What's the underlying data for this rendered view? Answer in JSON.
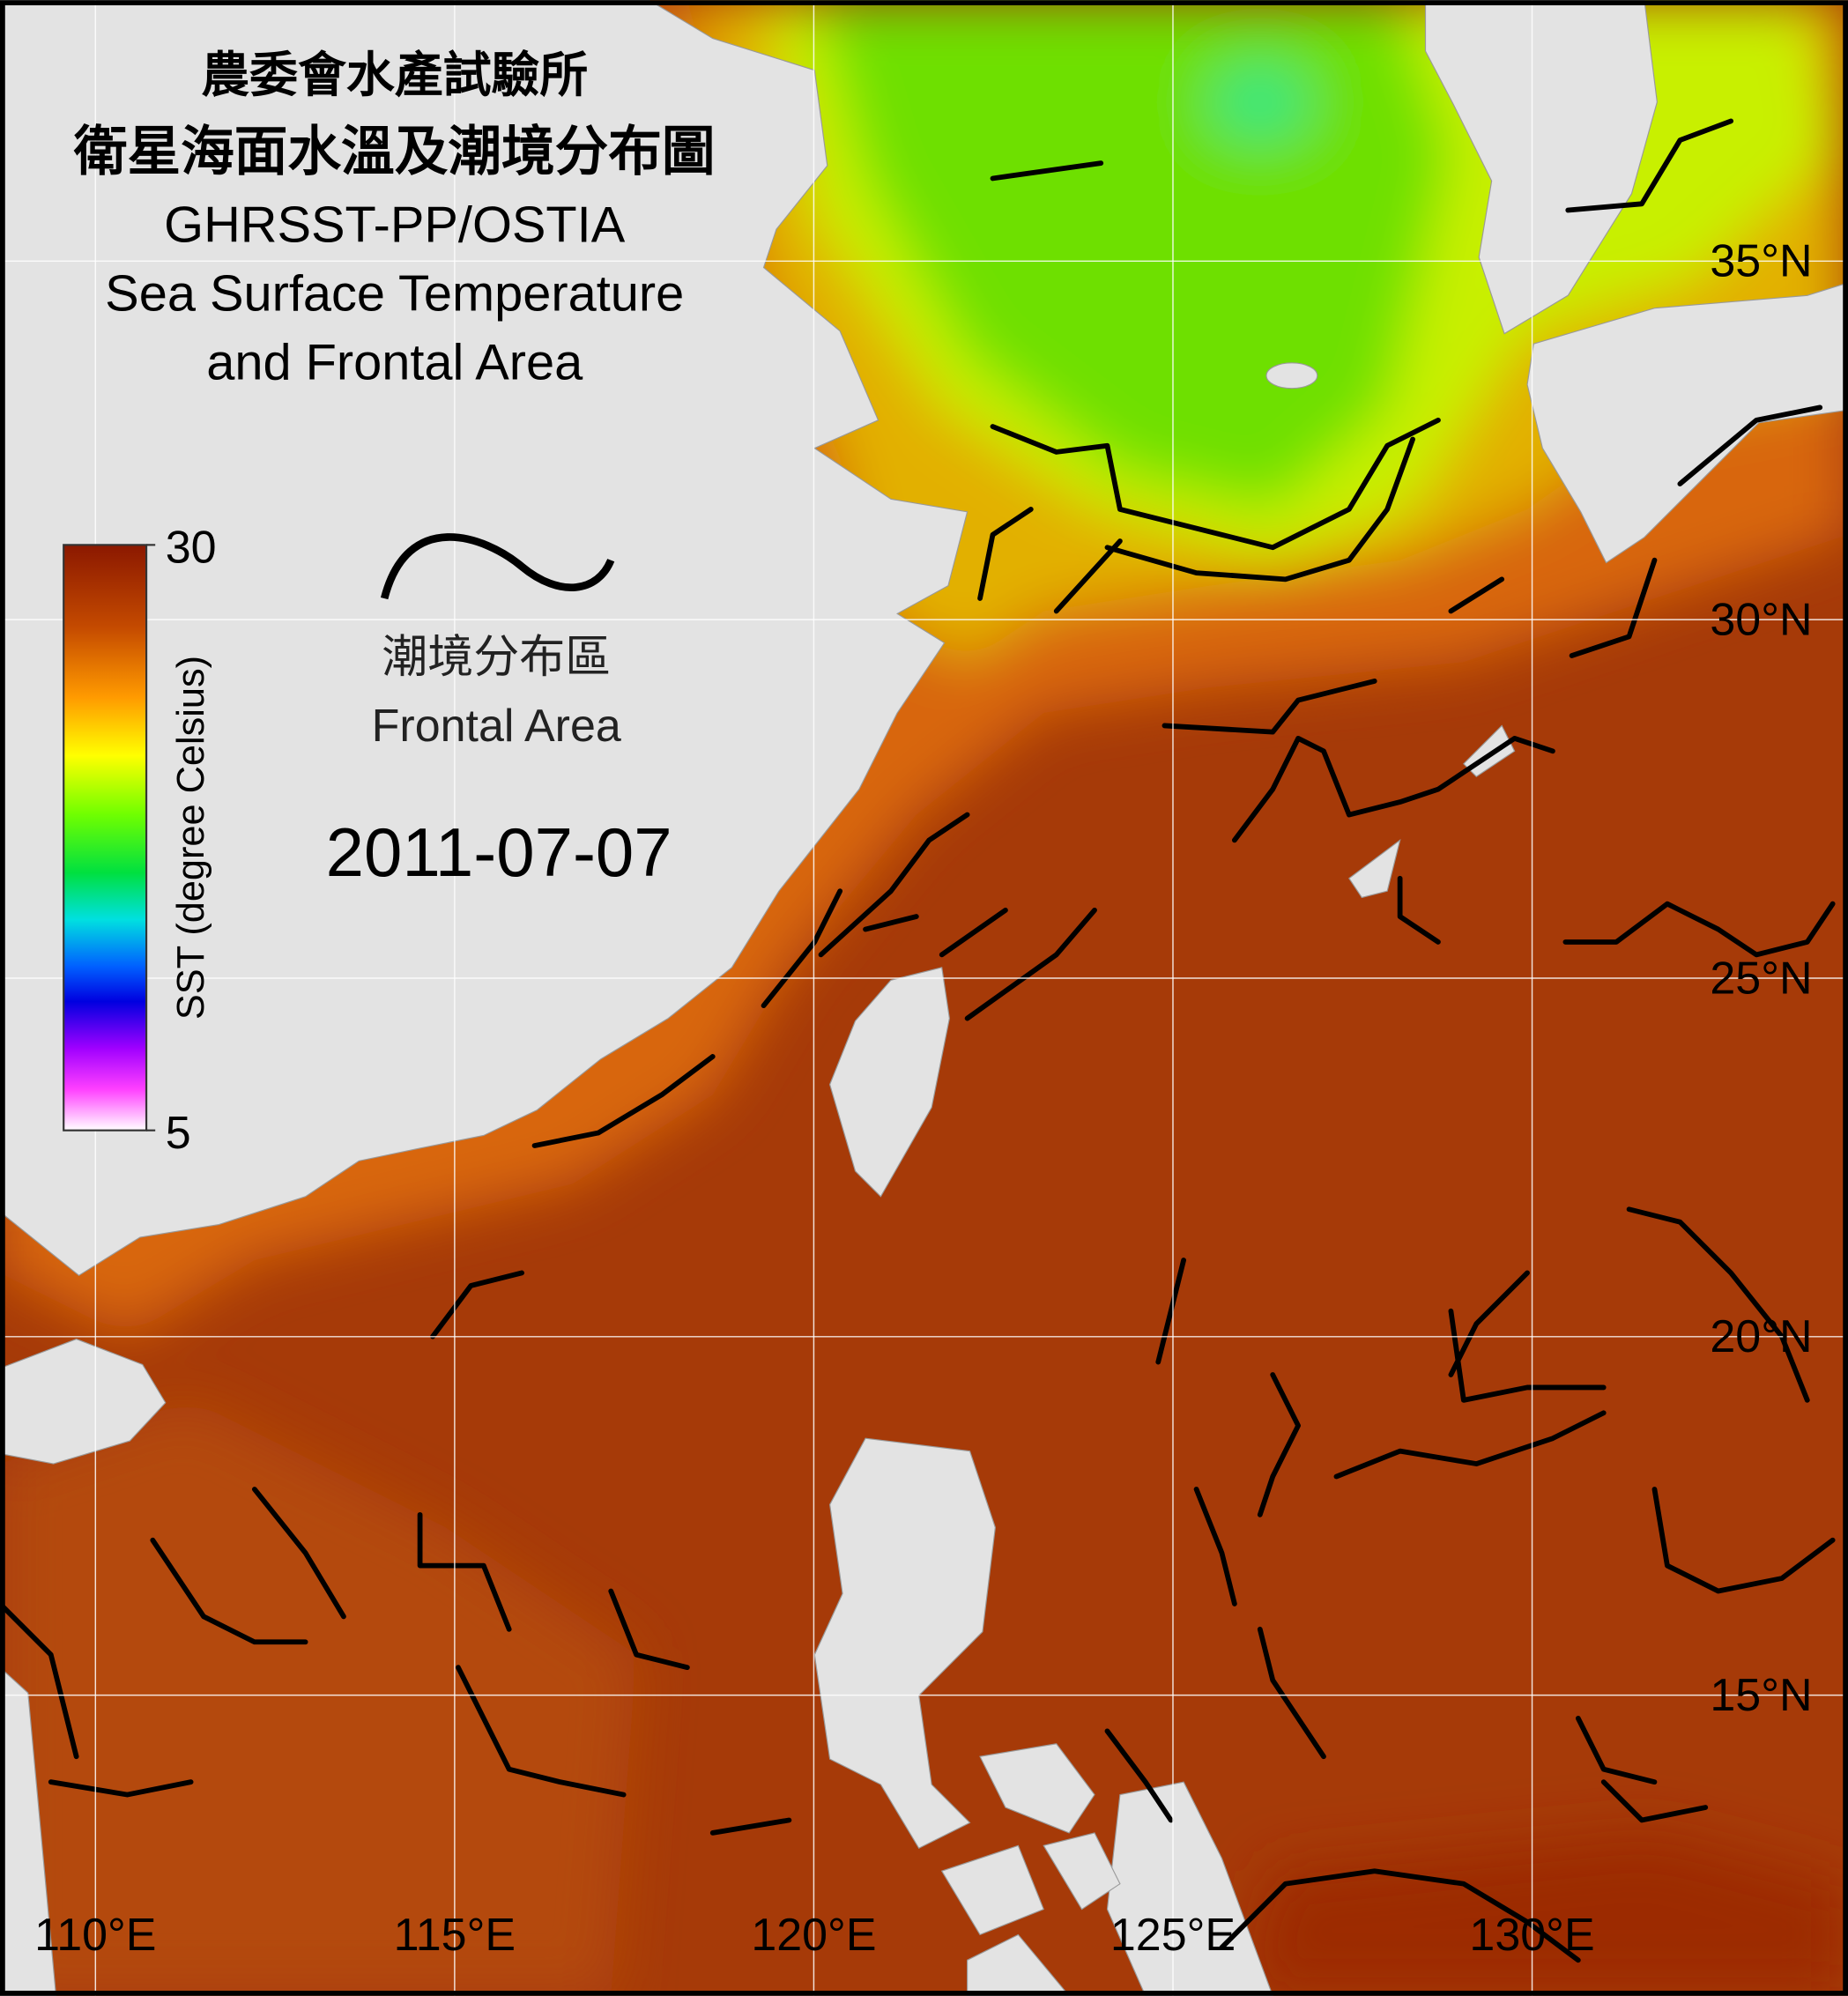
{
  "header": {
    "title_lines": [
      "農委會水產試驗所",
      "衛星海面水溫及潮境分布圖",
      "GHRSST-PP/OSTIA",
      "Sea Surface Temperature",
      "and Frontal Area"
    ]
  },
  "legend": {
    "label_zh": "潮境分布區",
    "label_en": "Frontal Area"
  },
  "date": "2011-07-07",
  "colorbar": {
    "label": "SST (degree Celsius)",
    "max": 30,
    "min": 5
  },
  "grid": {
    "latitudes": [
      "35°N",
      "30°N",
      "25°N",
      "20°N",
      "15°N"
    ],
    "longitudes": [
      "110°E",
      "115°E",
      "120°E",
      "125°E",
      "130°E"
    ]
  }
}
